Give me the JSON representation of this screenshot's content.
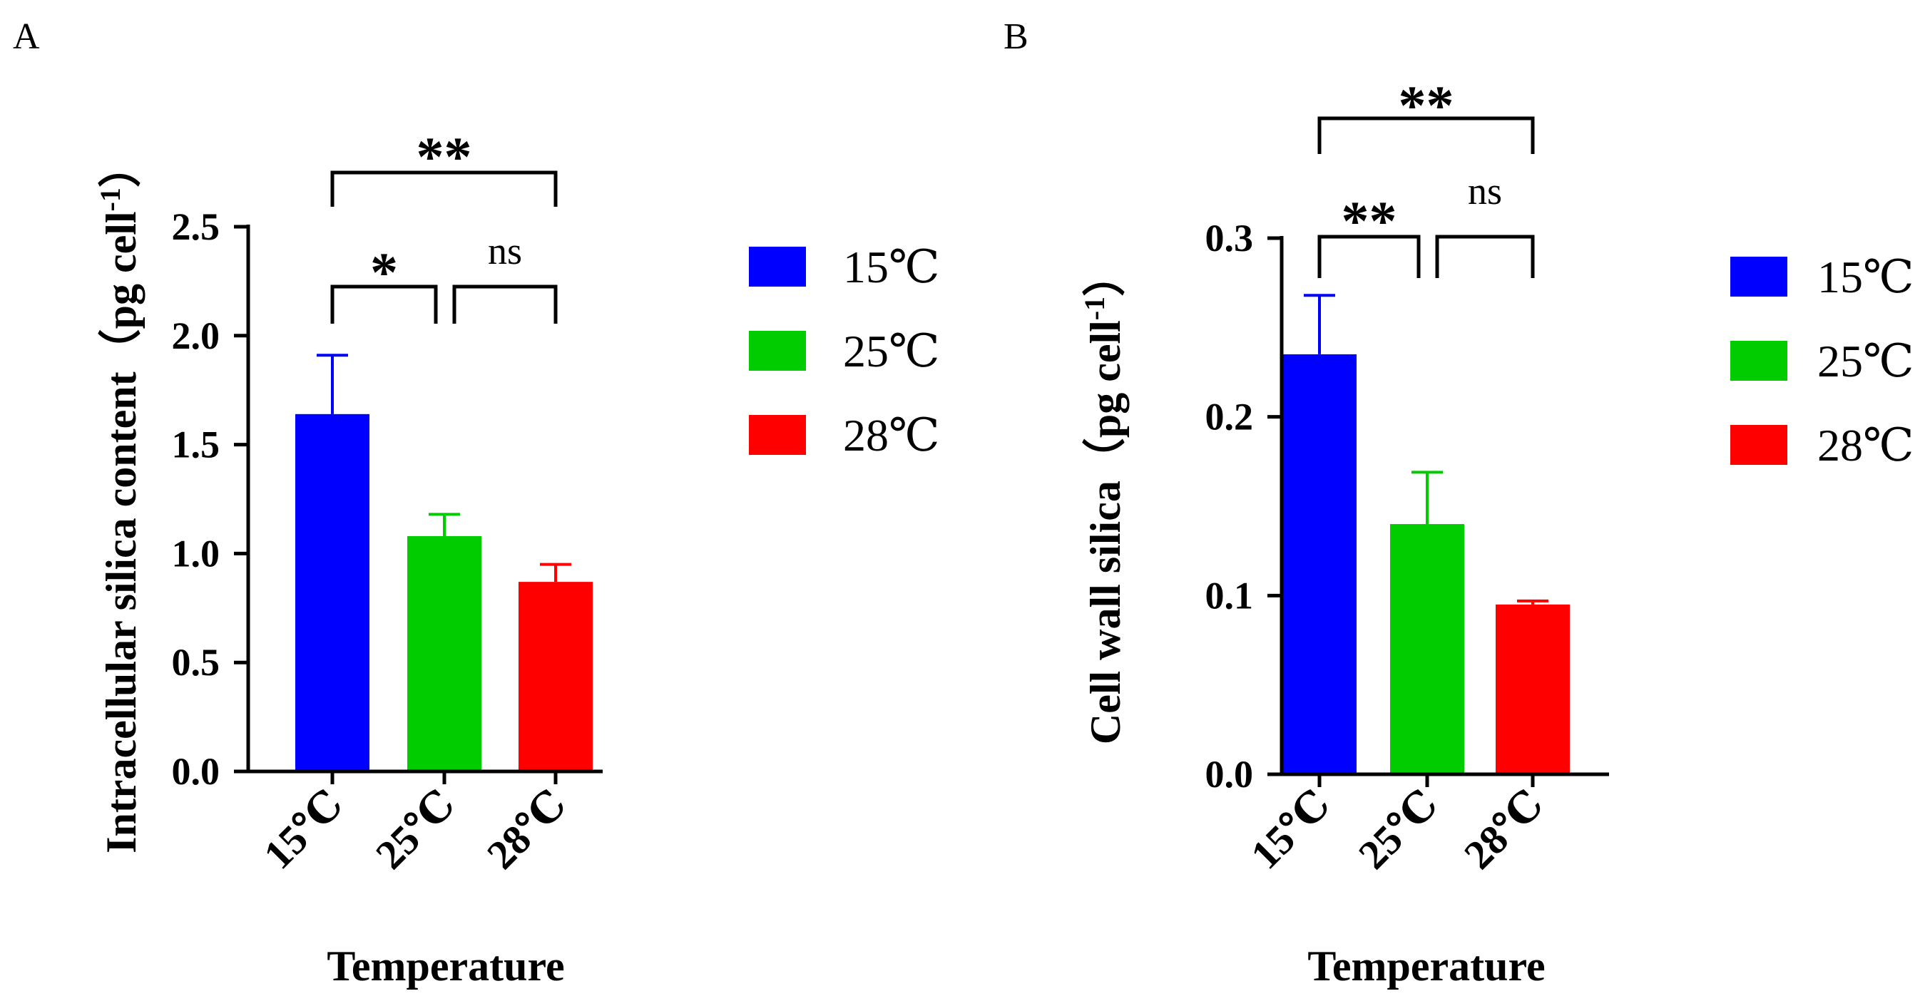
{
  "chart_data": [
    {
      "panel": "A",
      "type": "bar",
      "categories": [
        "15℃",
        "25℃",
        "28℃"
      ],
      "values": [
        1.64,
        1.08,
        0.87
      ],
      "errors": [
        0.27,
        0.1,
        0.08
      ],
      "colors": [
        "#0000ff",
        "#00cc00",
        "#ff0000"
      ],
      "ylabel": "Intracellular silica content（pg cell",
      "ylabel_sup": "-1",
      "ylabel_end": "）",
      "xlabel": "Temperature",
      "ylim": [
        0,
        2.5
      ],
      "yticks": [
        0.0,
        0.5,
        1.0,
        1.5,
        2.0,
        2.5
      ],
      "ytick_labels": [
        "0.0",
        "0.5",
        "1.0",
        "1.5",
        "2.0",
        "2.5"
      ],
      "significance": [
        {
          "from": 0,
          "to": 1,
          "level": 2.0,
          "label": "*"
        },
        {
          "from": 1,
          "to": 2,
          "level": 2.0,
          "label": "ns"
        },
        {
          "from": 0,
          "to": 2,
          "level": 2.45,
          "label": "**"
        }
      ],
      "legend": [
        "15℃",
        "25℃",
        "28℃"
      ]
    },
    {
      "panel": "B",
      "type": "bar",
      "categories": [
        "15℃",
        "25℃",
        "28℃"
      ],
      "values": [
        0.235,
        0.14,
        0.095
      ],
      "errors": [
        0.033,
        0.029,
        0.002
      ],
      "colors": [
        "#0000ff",
        "#00cc00",
        "#ff0000"
      ],
      "ylabel": "Cell wall silica（pg cell",
      "ylabel_sup": "-1",
      "ylabel_end": "）",
      "xlabel": "Temperature",
      "ylim": [
        0,
        0.3
      ],
      "yticks": [
        0.0,
        0.1,
        0.2,
        0.3
      ],
      "ytick_labels": [
        "0.0",
        "0.1",
        "0.2",
        "0.3"
      ],
      "significance": [
        {
          "from": 0,
          "to": 1,
          "level": 0.3,
          "label": "**"
        },
        {
          "from": 1,
          "to": 2,
          "level": 0.3,
          "label": "ns"
        },
        {
          "from": 0,
          "to": 2,
          "level": 0.368,
          "label": "**"
        }
      ],
      "legend": [
        "15℃",
        "25℃",
        "28℃"
      ]
    }
  ]
}
